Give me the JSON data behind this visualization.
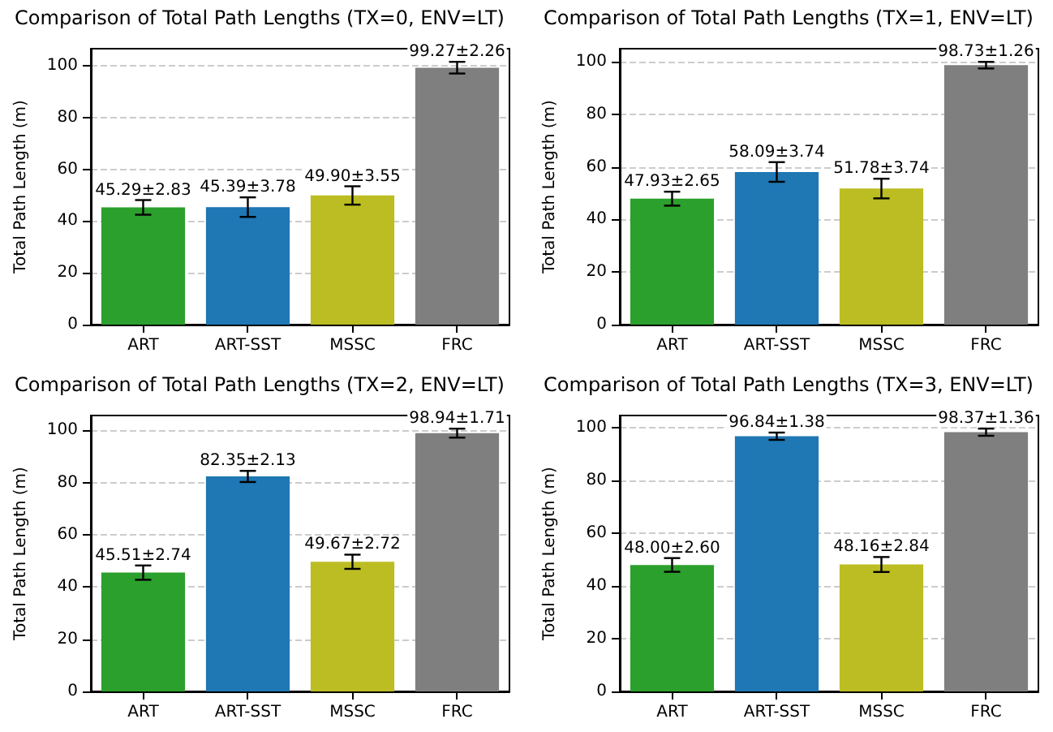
{
  "chart_data": [
    {
      "type": "bar",
      "title": "Comparison of Total Path Lengths (TX=0, ENV=LT)",
      "ylabel": "Total Path Length (m)",
      "categories": [
        "ART",
        "ART-SST",
        "MSSC",
        "FRC"
      ],
      "colors": [
        "#2ca02c",
        "#1f77b4",
        "#bcbd22",
        "#7f7f7f"
      ],
      "values": [
        45.29,
        45.39,
        49.9,
        99.27
      ],
      "errors": [
        2.83,
        3.78,
        3.55,
        2.26
      ],
      "value_labels": [
        "45.29±2.83",
        "45.39±3.78",
        "49.90±3.55",
        "99.27±2.26"
      ],
      "ylim": [
        0,
        106.6
      ],
      "yticks": [
        0,
        20,
        40,
        60,
        80,
        100
      ],
      "grid": "y"
    },
    {
      "type": "bar",
      "title": "Comparison of Total Path Lengths (TX=1, ENV=LT)",
      "ylabel": "Total Path Length (m)",
      "categories": [
        "ART",
        "ART-SST",
        "MSSC",
        "FRC"
      ],
      "colors": [
        "#2ca02c",
        "#1f77b4",
        "#bcbd22",
        "#7f7f7f"
      ],
      "values": [
        47.93,
        58.09,
        51.78,
        98.73
      ],
      "errors": [
        2.65,
        3.74,
        3.74,
        1.26
      ],
      "value_labels": [
        "47.93±2.65",
        "58.09±3.74",
        "51.78±3.74",
        "98.73±1.26"
      ],
      "ylim": [
        0,
        105
      ],
      "yticks": [
        0,
        20,
        40,
        60,
        80,
        100
      ],
      "grid": "y"
    },
    {
      "type": "bar",
      "title": "Comparison of Total Path Lengths (TX=2, ENV=LT)",
      "ylabel": "Total Path Length (m)",
      "categories": [
        "ART",
        "ART-SST",
        "MSSC",
        "FRC"
      ],
      "colors": [
        "#2ca02c",
        "#1f77b4",
        "#bcbd22",
        "#7f7f7f"
      ],
      "values": [
        45.51,
        82.35,
        49.67,
        98.94
      ],
      "errors": [
        2.74,
        2.13,
        2.72,
        1.71
      ],
      "value_labels": [
        "45.51±2.74",
        "82.35±2.13",
        "49.67±2.72",
        "98.94±1.71"
      ],
      "ylim": [
        0,
        105.7
      ],
      "yticks": [
        0,
        20,
        40,
        60,
        80,
        100
      ],
      "grid": "y"
    },
    {
      "type": "bar",
      "title": "Comparison of Total Path Lengths (TX=3, ENV=LT)",
      "ylabel": "Total Path Length (m)",
      "categories": [
        "ART",
        "ART-SST",
        "MSSC",
        "FRC"
      ],
      "colors": [
        "#2ca02c",
        "#1f77b4",
        "#bcbd22",
        "#7f7f7f"
      ],
      "values": [
        48.0,
        96.84,
        48.16,
        98.37
      ],
      "errors": [
        2.6,
        1.38,
        2.84,
        1.36
      ],
      "value_labels": [
        "48.00±2.60",
        "96.84±1.38",
        "48.16±2.84",
        "98.37±1.36"
      ],
      "ylim": [
        0,
        104.7
      ],
      "yticks": [
        0,
        20,
        40,
        60,
        80,
        100
      ],
      "grid": "y"
    }
  ]
}
